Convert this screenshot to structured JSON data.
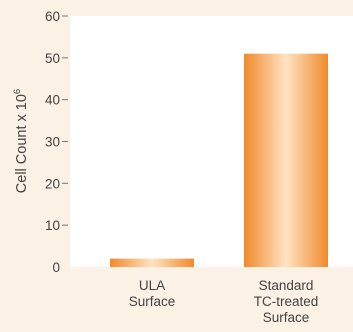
{
  "chart_data": {
    "type": "bar",
    "categories": [
      [
        "ULA",
        "Surface"
      ],
      [
        "Standard",
        "TC-treated",
        "Surface"
      ]
    ],
    "values": [
      2,
      51
    ],
    "ylabel": "Cell Count x 10",
    "ylabel_superscript": "6",
    "ylim": [
      0,
      60
    ],
    "yticks": [
      0,
      10,
      20,
      30,
      40,
      50,
      60
    ],
    "grid": false,
    "colors": {
      "background": "#fbf1e4",
      "plot_area": "#ffffff",
      "bar_edge": "#f08a2c",
      "bar_center": "#ffe3c2",
      "text": "#444444",
      "tick_mark": "#777777"
    }
  }
}
